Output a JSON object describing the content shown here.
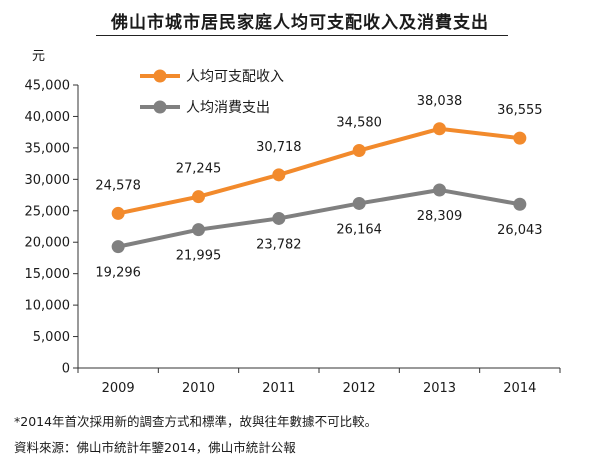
{
  "chart_data": {
    "type": "line",
    "title": "佛山市城市居民家庭人均可支配收入及消費支出",
    "ylabel": "元",
    "xlabel": "",
    "categories": [
      "2009",
      "2010",
      "2011",
      "2012",
      "2013",
      "2014"
    ],
    "ylim": [
      0,
      45000
    ],
    "yticks": [
      0,
      5000,
      10000,
      15000,
      20000,
      25000,
      30000,
      35000,
      40000,
      45000
    ],
    "ytick_labels": [
      "0",
      "5,000",
      "10,000",
      "15,000",
      "20,000",
      "25,000",
      "30,000",
      "35,000",
      "40,000",
      "45,000"
    ],
    "grid": false,
    "legend_position": "top-left",
    "series": [
      {
        "name": "人均可支配收入",
        "color": "#f28a2c",
        "values": [
          24578,
          27245,
          30718,
          34580,
          38038,
          36555
        ],
        "labels": [
          "24,578",
          "27,245",
          "30,718",
          "34,580",
          "38,038",
          "36,555"
        ]
      },
      {
        "name": "人均消費支出",
        "color": "#808080",
        "values": [
          19296,
          21995,
          23782,
          26164,
          28309,
          26043
        ],
        "labels": [
          "19,296",
          "21,995",
          "23,782",
          "26,164",
          "28,309",
          "26,043"
        ]
      }
    ]
  },
  "footnote": "*2014年首次採用新的調查方式和標準，故與往年數據不可比較。",
  "source": "資料來源：佛山市統計年鑒2014，佛山市統計公報"
}
